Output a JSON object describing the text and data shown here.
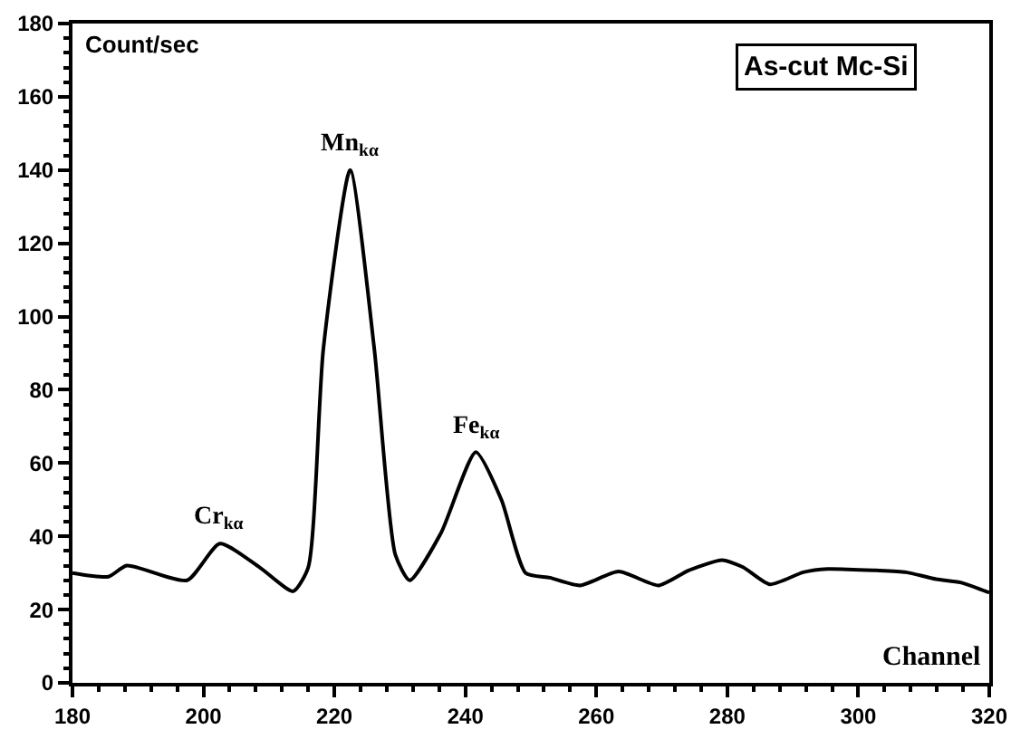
{
  "chart_data": {
    "type": "line",
    "title": "As-cut Mc-Si",
    "xlabel": "Channel",
    "ylabel": "Count/sec",
    "series": [
      {
        "color": "#000000",
        "x": [
          180,
          185.5,
          188.3,
          197.5,
          202.5,
          208.6,
          213.7,
          216,
          218.3,
          222.4,
          226.1,
          229.3,
          231.5,
          236.3,
          241.6,
          245.5,
          249.2,
          252.9,
          257.5,
          263.4,
          269.5,
          274.1,
          279.2,
          282.4,
          286.5,
          291.6,
          295.3,
          302.7,
          307.3,
          311.9,
          315.6,
          320
        ],
        "values": [
          30,
          29,
          32,
          28,
          38,
          31.5,
          25,
          31.5,
          91,
          140,
          91,
          35,
          28,
          41,
          63,
          50,
          30,
          28.7,
          26.6,
          30.4,
          26.6,
          30.7,
          33.5,
          31.6,
          26.9,
          30.2,
          31.1,
          30.7,
          30.2,
          28.3,
          27.4,
          24.6
        ]
      }
    ],
    "annotations": [
      {
        "text": "Cr$_{kα}$",
        "x": 202.5,
        "y": 38
      },
      {
        "text": "Mn$_{kα}$",
        "x": 222.4,
        "y": 140
      },
      {
        "text": "Fe$_{kα}$",
        "x": 241.6,
        "y": 63
      }
    ],
    "xlim": [
      180,
      320
    ],
    "xticks": [
      180,
      200,
      220,
      240,
      260,
      280,
      300,
      320
    ],
    "ylim": [
      0,
      180
    ],
    "yticks": [
      0,
      20,
      40,
      60,
      80,
      100,
      120,
      140,
      160,
      180
    ],
    "grid": false,
    "marker": "none",
    "line_style": "solid"
  }
}
